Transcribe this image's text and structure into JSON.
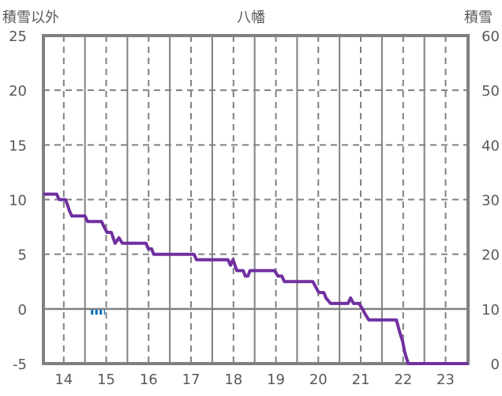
{
  "chart_data": {
    "type": "line",
    "title": "八幡",
    "ylabel_left": "積雪以外",
    "ylabel_right": "積雪",
    "xlim": [
      13.52,
      23.53
    ],
    "x_ticks": [
      14,
      15,
      16,
      17,
      18,
      19,
      20,
      21,
      22,
      23
    ],
    "y_left_lim": [
      -5,
      25
    ],
    "y_left_ticks": [
      -5,
      0,
      5,
      10,
      15,
      20,
      25
    ],
    "y_right_lim": [
      0,
      60
    ],
    "y_right_ticks": [
      0,
      10,
      20,
      30,
      40,
      50,
      60
    ],
    "grid": true,
    "series": [
      {
        "name": "積雪",
        "axis": "right",
        "color": "#7030A0",
        "x": [
          13.52,
          13.83,
          13.89,
          14.04,
          14.09,
          14.13,
          14.19,
          14.5,
          14.56,
          14.89,
          14.95,
          15.02,
          15.12,
          15.21,
          15.3,
          15.38,
          15.94,
          15.99,
          16.07,
          16.12,
          17.07,
          17.13,
          17.87,
          17.93,
          17.99,
          18.08,
          18.23,
          18.28,
          18.34,
          18.39,
          18.97,
          19.05,
          19.14,
          19.2,
          19.87,
          19.94,
          20.01,
          20.13,
          20.18,
          20.29,
          20.7,
          20.76,
          20.83,
          20.96,
          21.04,
          21.11,
          21.19,
          21.84,
          21.91,
          21.99,
          22.04,
          22.12,
          23.53
        ],
        "y": [
          31,
          31,
          30,
          30,
          29,
          28,
          27,
          27,
          26,
          26,
          25,
          24,
          24,
          22,
          23,
          22,
          22,
          21,
          21,
          20,
          20,
          19,
          19,
          18,
          19,
          17,
          17,
          16,
          16,
          17,
          17,
          16,
          16,
          15,
          15,
          14,
          13,
          13,
          12,
          11,
          11,
          12,
          11,
          11,
          10,
          9,
          8,
          8,
          6,
          4,
          2,
          0,
          0
        ]
      },
      {
        "name": "積雪以外",
        "axis": "left",
        "color": "#0070C0",
        "style": "dashed",
        "x": [
          14.64,
          14.97
        ],
        "y": [
          -0.3,
          -0.3
        ]
      }
    ]
  }
}
